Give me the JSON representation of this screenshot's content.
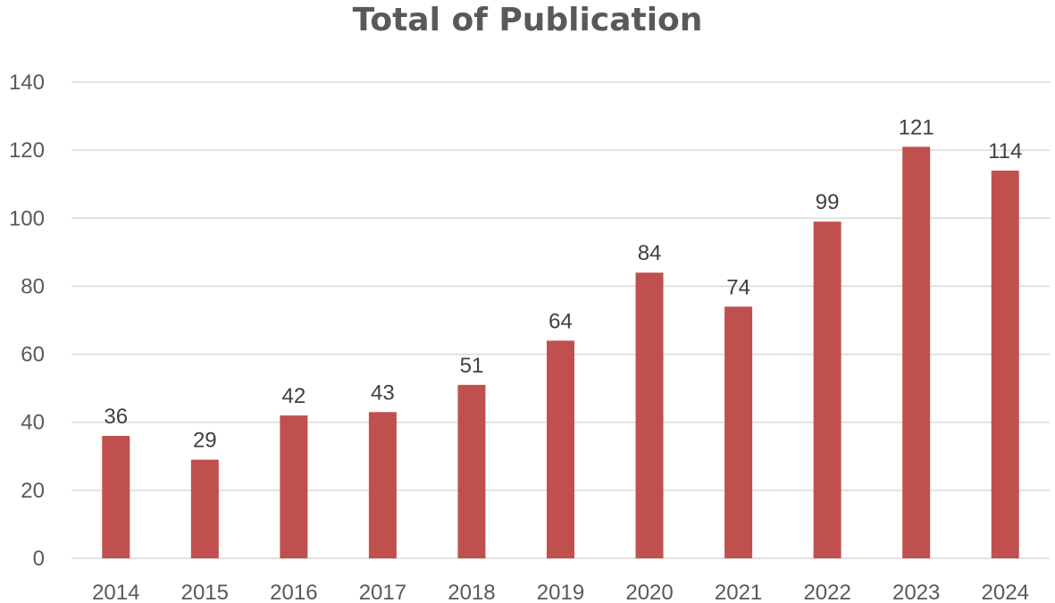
{
  "chart_data": {
    "type": "bar",
    "title": "Total of Publication",
    "xlabel": "",
    "ylabel": "",
    "categories": [
      "2014",
      "2015",
      "2016",
      "2017",
      "2018",
      "2019",
      "2020",
      "2021",
      "2022",
      "2023",
      "2024"
    ],
    "values": [
      36,
      29,
      42,
      43,
      51,
      64,
      84,
      74,
      99,
      121,
      114
    ],
    "ylim": [
      0,
      140
    ],
    "yticks": [
      0,
      20,
      40,
      60,
      80,
      100,
      120,
      140
    ],
    "grid": true,
    "legend": "none",
    "bar_color": "#c0504d",
    "grid_color": "#d9d9d9"
  }
}
